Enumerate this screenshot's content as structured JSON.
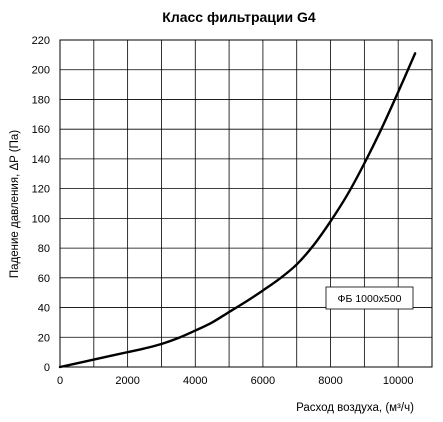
{
  "chart_data": {
    "type": "line",
    "title": "Класс фильтрации G4",
    "xlabel": "Расход воздуха, (м³/ч)",
    "ylabel": "Падение давления, ΔP (Па)",
    "xlim": [
      0,
      11000
    ],
    "ylim": [
      0,
      220
    ],
    "x_ticks": [
      0,
      2000,
      4000,
      6000,
      8000,
      10000
    ],
    "y_ticks": [
      0,
      20,
      40,
      60,
      80,
      100,
      120,
      140,
      160,
      180,
      200,
      220
    ],
    "grid": true,
    "legend_position": "right-middle",
    "series": [
      {
        "name": "ФБ 1000х500",
        "color": "#000000",
        "x": [
          0,
          500,
          1000,
          1500,
          2000,
          2500,
          3000,
          3500,
          4000,
          4500,
          5000,
          5500,
          6000,
          6500,
          7000,
          7500,
          8000,
          8500,
          9000,
          9500,
          10000,
          10500
        ],
        "y": [
          0,
          2.5,
          5,
          7.5,
          10,
          12.5,
          15.5,
          19.5,
          24.5,
          30,
          37,
          44,
          51.5,
          59.5,
          69,
          82,
          98,
          116,
          137,
          160,
          185,
          211
        ]
      }
    ]
  }
}
